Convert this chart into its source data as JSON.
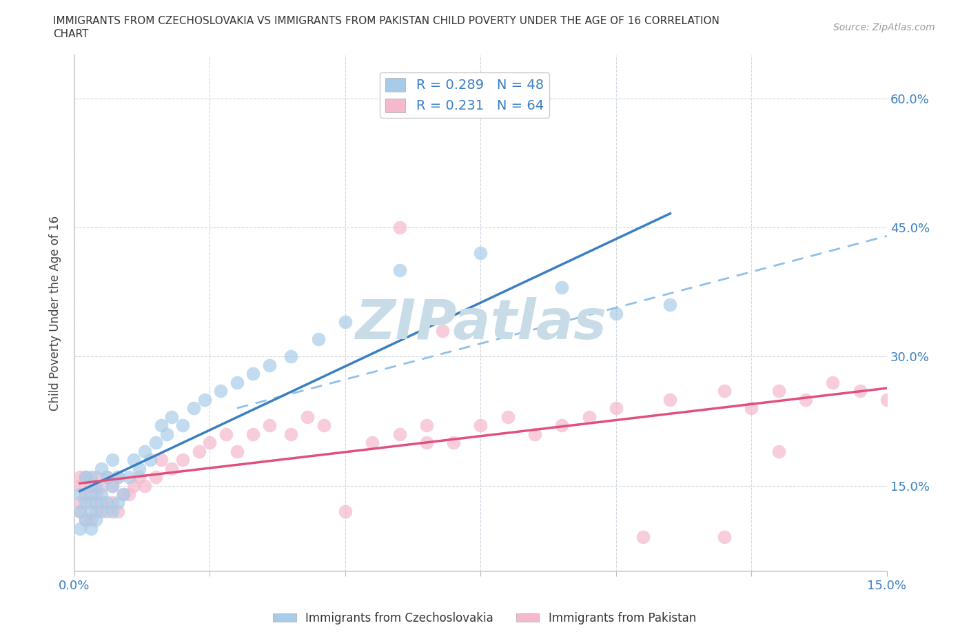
{
  "title_line1": "IMMIGRANTS FROM CZECHOSLOVAKIA VS IMMIGRANTS FROM PAKISTAN CHILD POVERTY UNDER THE AGE OF 16 CORRELATION",
  "title_line2": "CHART",
  "source_text": "Source: ZipAtlas.com",
  "ylabel": "Child Poverty Under the Age of 16",
  "xlim": [
    0.0,
    0.15
  ],
  "ylim": [
    0.05,
    0.65
  ],
  "yticks": [
    0.15,
    0.3,
    0.45,
    0.6
  ],
  "ytick_labels": [
    "15.0%",
    "30.0%",
    "45.0%",
    "60.0%"
  ],
  "xtick_labels_left": "0.0%",
  "xtick_labels_right": "15.0%",
  "czech_fill": "#a8cce8",
  "pakistan_fill": "#f5b8cc",
  "czech_line_color": "#3a7fc1",
  "pakistan_line_color": "#e0507a",
  "dashed_line_color": "#90c0e8",
  "R_czech": 0.289,
  "N_czech": 48,
  "R_pakistan": 0.231,
  "N_pakistan": 64,
  "legend_label_czech": "Immigrants from Czechoslovakia",
  "legend_label_pakistan": "Immigrants from Pakistan",
  "watermark": "ZIPatlas",
  "watermark_color": "#c8dce8",
  "background_color": "#ffffff",
  "grid_color": "#d0d8e0",
  "czech_x": [
    0.001,
    0.001,
    0.001,
    0.002,
    0.002,
    0.002,
    0.003,
    0.003,
    0.003,
    0.003,
    0.004,
    0.004,
    0.004,
    0.005,
    0.005,
    0.005,
    0.006,
    0.006,
    0.007,
    0.007,
    0.007,
    0.008,
    0.008,
    0.009,
    0.01,
    0.011,
    0.012,
    0.013,
    0.014,
    0.015,
    0.016,
    0.017,
    0.018,
    0.02,
    0.022,
    0.024,
    0.027,
    0.03,
    0.033,
    0.036,
    0.04,
    0.045,
    0.05,
    0.06,
    0.075,
    0.09,
    0.1,
    0.11
  ],
  "czech_y": [
    0.1,
    0.12,
    0.14,
    0.11,
    0.13,
    0.16,
    0.1,
    0.12,
    0.14,
    0.16,
    0.11,
    0.13,
    0.15,
    0.12,
    0.14,
    0.17,
    0.13,
    0.16,
    0.12,
    0.15,
    0.18,
    0.13,
    0.16,
    0.14,
    0.16,
    0.18,
    0.17,
    0.19,
    0.18,
    0.2,
    0.22,
    0.21,
    0.23,
    0.22,
    0.24,
    0.25,
    0.26,
    0.27,
    0.28,
    0.29,
    0.3,
    0.32,
    0.34,
    0.4,
    0.42,
    0.38,
    0.35,
    0.36
  ],
  "pakistan_x": [
    0.001,
    0.001,
    0.001,
    0.001,
    0.002,
    0.002,
    0.002,
    0.003,
    0.003,
    0.003,
    0.004,
    0.004,
    0.004,
    0.005,
    0.005,
    0.006,
    0.006,
    0.007,
    0.007,
    0.008,
    0.008,
    0.009,
    0.01,
    0.011,
    0.012,
    0.013,
    0.015,
    0.016,
    0.018,
    0.02,
    0.023,
    0.025,
    0.028,
    0.03,
    0.033,
    0.036,
    0.04,
    0.043,
    0.046,
    0.05,
    0.055,
    0.06,
    0.065,
    0.068,
    0.075,
    0.08,
    0.085,
    0.09,
    0.095,
    0.1,
    0.105,
    0.11,
    0.12,
    0.125,
    0.13,
    0.135,
    0.14,
    0.145,
    0.15,
    0.06,
    0.065,
    0.07,
    0.13,
    0.12
  ],
  "pakistan_y": [
    0.12,
    0.13,
    0.15,
    0.16,
    0.11,
    0.14,
    0.16,
    0.11,
    0.13,
    0.15,
    0.12,
    0.14,
    0.16,
    0.13,
    0.15,
    0.12,
    0.16,
    0.13,
    0.15,
    0.12,
    0.16,
    0.14,
    0.14,
    0.15,
    0.16,
    0.15,
    0.16,
    0.18,
    0.17,
    0.18,
    0.19,
    0.2,
    0.21,
    0.19,
    0.21,
    0.22,
    0.21,
    0.23,
    0.22,
    0.12,
    0.2,
    0.21,
    0.22,
    0.33,
    0.22,
    0.23,
    0.21,
    0.22,
    0.23,
    0.24,
    0.09,
    0.25,
    0.26,
    0.24,
    0.26,
    0.25,
    0.27,
    0.26,
    0.25,
    0.45,
    0.2,
    0.2,
    0.19,
    0.09
  ]
}
